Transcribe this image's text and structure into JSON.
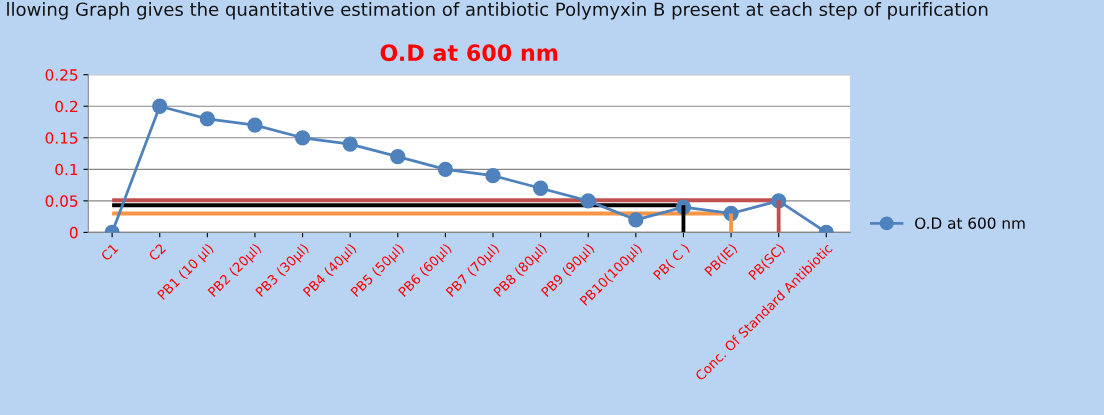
{
  "chart_data": {
    "type": "line",
    "title": "O.D at 600 nm",
    "annotations": [
      "llowing Graph gives the quantitative estimation of antibiotic Polymyxin B present at each step of purification"
    ],
    "categories": [
      "C1",
      "C2",
      "PB1 (10 µl)",
      "PB2 (20µl)",
      "PB3 (30µl)",
      "PB4 (40µl)",
      "PB5 (50µl)",
      "PB6 (60µl)",
      "PB7 (70µl)",
      "PB8 (80µl)",
      "PB9 (90µl)",
      "PB10(100µl)",
      "PB( C )",
      "PB(IE)",
      "PB(SC)",
      "Conc. Of Standard Antibiotic"
    ],
    "series": [
      {
        "name": "O.D at 600 nm",
        "color": "#4f81bd",
        "marker": "circle",
        "values": [
          0,
          0.2,
          0.18,
          0.17,
          0.15,
          0.14,
          0.12,
          0.1,
          0.09,
          0.07,
          0.05,
          0.02,
          0.04,
          0.03,
          0.05,
          0
        ]
      },
      {
        "type": "line",
        "color": "#c0504d",
        "marker": "none",
        "values": [
          0.051,
          0.051,
          0.051,
          0.051,
          0.051,
          0.051,
          0.051,
          0.051,
          0.051,
          0.051,
          0.051,
          0.051,
          0.051,
          0.051,
          0.051,
          null
        ]
      },
      {
        "type": "bar",
        "color": "#c0504d",
        "values": [
          null,
          null,
          null,
          null,
          null,
          null,
          null,
          null,
          null,
          null,
          null,
          null,
          null,
          null,
          0.051,
          null
        ]
      },
      {
        "type": "line",
        "color": "#000000",
        "marker": "none",
        "values": [
          0.043,
          0.043,
          0.043,
          0.043,
          0.043,
          0.043,
          0.043,
          0.043,
          0.043,
          0.043,
          0.043,
          0.043,
          0.043,
          null,
          null,
          null
        ]
      },
      {
        "type": "bar",
        "color": "#000000",
        "values": [
          null,
          null,
          null,
          null,
          null,
          null,
          null,
          null,
          null,
          null,
          null,
          null,
          0.043,
          null,
          null,
          null
        ]
      },
      {
        "type": "line",
        "color": "#f79646",
        "marker": "none",
        "values": [
          0.03,
          0.03,
          0.03,
          0.03,
          0.03,
          0.03,
          0.03,
          0.03,
          0.03,
          0.03,
          0.03,
          0.03,
          0.03,
          0.03,
          null,
          null
        ]
      },
      {
        "type": "bar",
        "color": "#f79646",
        "values": [
          null,
          null,
          null,
          null,
          null,
          null,
          null,
          null,
          null,
          null,
          null,
          null,
          null,
          0.03,
          null,
          null
        ]
      }
    ],
    "ylim": [
      0,
      0.25
    ],
    "yticks": [
      0,
      0.05,
      0.1,
      0.15,
      0.2,
      0.25
    ],
    "grid": "y",
    "legend": "right"
  }
}
